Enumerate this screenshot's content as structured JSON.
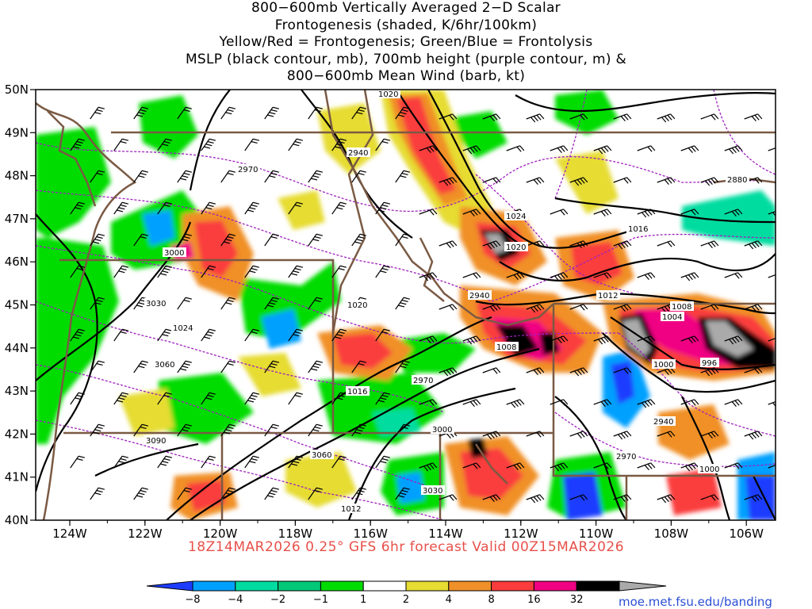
{
  "title": {
    "lines": [
      "800−600mb Vertically Averaged 2−D Scalar",
      "Frontogenesis (shaded, K/6hr/100km)",
      "Yellow/Red = Frontogenesis;  Green/Blue = Frontolysis",
      "MSLP (black contour, mb), 700mb height (purple contour, m) &",
      "800−600mb Mean Wind (barb, kt)"
    ]
  },
  "axes": {
    "lat_labels": [
      "50N",
      "49N",
      "48N",
      "47N",
      "46N",
      "45N",
      "44N",
      "43N",
      "42N",
      "41N",
      "40N"
    ],
    "lon_labels": [
      "124W",
      "122W",
      "120W",
      "118W",
      "116W",
      "114W",
      "112W",
      "110W",
      "108W",
      "106W"
    ]
  },
  "mslp_labels": [
    "1020",
    "1024",
    "1020",
    "1016",
    "1012",
    "1008",
    "1004",
    "1000",
    "996",
    "1008",
    "1000",
    "1020",
    "1016",
    "1012",
    "1024",
    "1000"
  ],
  "height_labels": [
    "2940",
    "2970",
    "2880",
    "3000",
    "3030",
    "3060",
    "3090",
    "3060",
    "3030",
    "3000",
    "2970",
    "2940",
    "2970",
    "2940"
  ],
  "footer": "18Z14MAR2026 0.25° GFS 6hr forecast Valid 00Z15MAR2026",
  "colorbar": {
    "labels": [
      "−8",
      "−4",
      "−2",
      "−1",
      "1",
      "2",
      "4",
      "8",
      "16",
      "32"
    ],
    "colors": [
      "#1e3cff",
      "#00a0ff",
      "#00dca0",
      "#00c878",
      "#00dc00",
      "#ffffff",
      "#e6dc32",
      "#f09028",
      "#fa3c3c",
      "#f00082",
      "#000000",
      "#aaaaaa"
    ]
  },
  "credit": "moe.met.fsu.edu/banding"
}
